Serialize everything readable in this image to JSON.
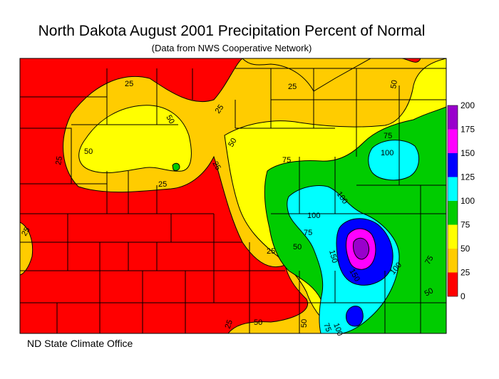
{
  "title": "North Dakota August 2001 Precipitation Percent of Normal",
  "subtitle": "(Data from NWS Cooperative Network)",
  "credit": "ND State Climate Office",
  "legend": {
    "ticks": [
      "200",
      "175",
      "150",
      "125",
      "100",
      "75",
      "50",
      "25",
      "0"
    ],
    "colors": [
      "#9900cc",
      "#ff00ff",
      "#0000ff",
      "#00ffff",
      "#00cc00",
      "#ffff00",
      "#ffcc00",
      "#ff0000"
    ]
  },
  "contour_labels": [
    "25",
    "25",
    "50",
    "50",
    "25",
    "25",
    "25",
    "25",
    "50",
    "75",
    "75",
    "100",
    "100",
    "100",
    "75",
    "50",
    "25",
    "150",
    "150",
    "100",
    "75",
    "50",
    "25",
    "50",
    "50",
    "75",
    "100",
    "50"
  ],
  "colors": {
    "lt25": "#ff0000",
    "c25_50": "#ffcc00",
    "c50_75": "#ffff00",
    "c75_100": "#00cc00",
    "c100_125": "#00ffff",
    "c125_150": "#0000ff",
    "c150_175": "#ff00ff",
    "c175_200": "#9900cc",
    "county_lines": "#000000",
    "contour_lines": "#000000"
  }
}
